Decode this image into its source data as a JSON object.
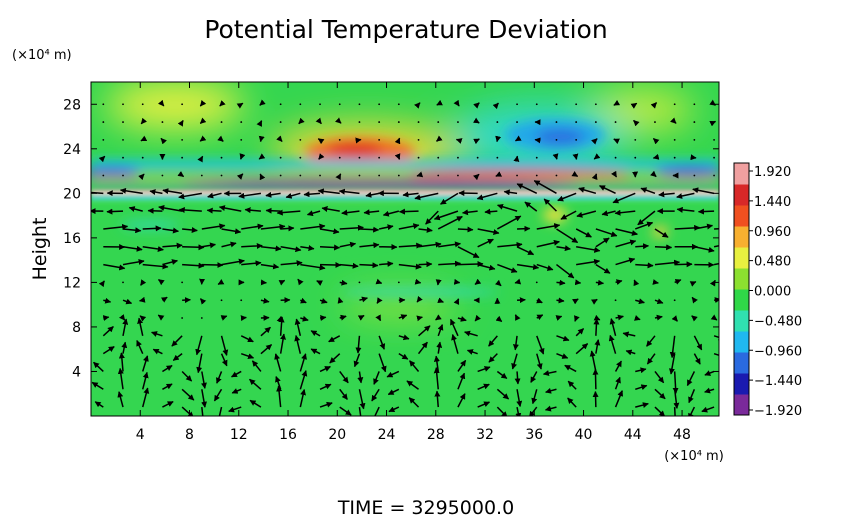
{
  "chart_data": {
    "type": "heatmap",
    "title": "Potential Temperature Deviation",
    "xlabel": "",
    "ylabel": "Height",
    "x_unit": "(×10⁴ m)",
    "y_unit": "(×10⁴ m)",
    "xlim": [
      0,
      51
    ],
    "ylim": [
      0,
      30
    ],
    "x_ticks": [
      4,
      8,
      12,
      16,
      20,
      24,
      28,
      32,
      36,
      40,
      44,
      48
    ],
    "y_ticks": [
      4,
      8,
      12,
      16,
      20,
      24,
      28
    ],
    "x_tick_labels": [
      "4",
      "8",
      "12",
      "16",
      "20",
      "24",
      "28",
      "32",
      "36",
      "40",
      "44",
      "48"
    ],
    "y_tick_labels": [
      "4",
      "8",
      "12",
      "16",
      "20",
      "24",
      "28"
    ],
    "colorbar": {
      "range": [
        -1.92,
        1.92
      ],
      "tick_labels": [
        "1.920",
        "1.440",
        "0.960",
        "0.480",
        "0.000",
        "−0.480",
        "−0.960",
        "−1.440",
        "−1.920"
      ],
      "colors": [
        "#7a2a9a",
        "#1a1ab0",
        "#2a6ae0",
        "#20b8f0",
        "#30e0b0",
        "#30d848",
        "#8ce030",
        "#e8f040",
        "#f8b030",
        "#f05020",
        "#d82828",
        "#f0a0a0"
      ]
    },
    "features": {
      "warm_anomaly": {
        "x": 22,
        "y": 23.5,
        "value": 1.2
      },
      "cold_anomaly": {
        "x": 35,
        "y": 24.5,
        "value": -0.9
      },
      "warm_anomaly_upper": {
        "x": 10,
        "y": 27,
        "value": 0.6
      },
      "oscillating_layer_y": [
        19.5,
        22.5
      ],
      "mid_jet_y": 15
    },
    "vector_overlay": "wind vectors",
    "footer": "TIME  =  3295000.0"
  }
}
